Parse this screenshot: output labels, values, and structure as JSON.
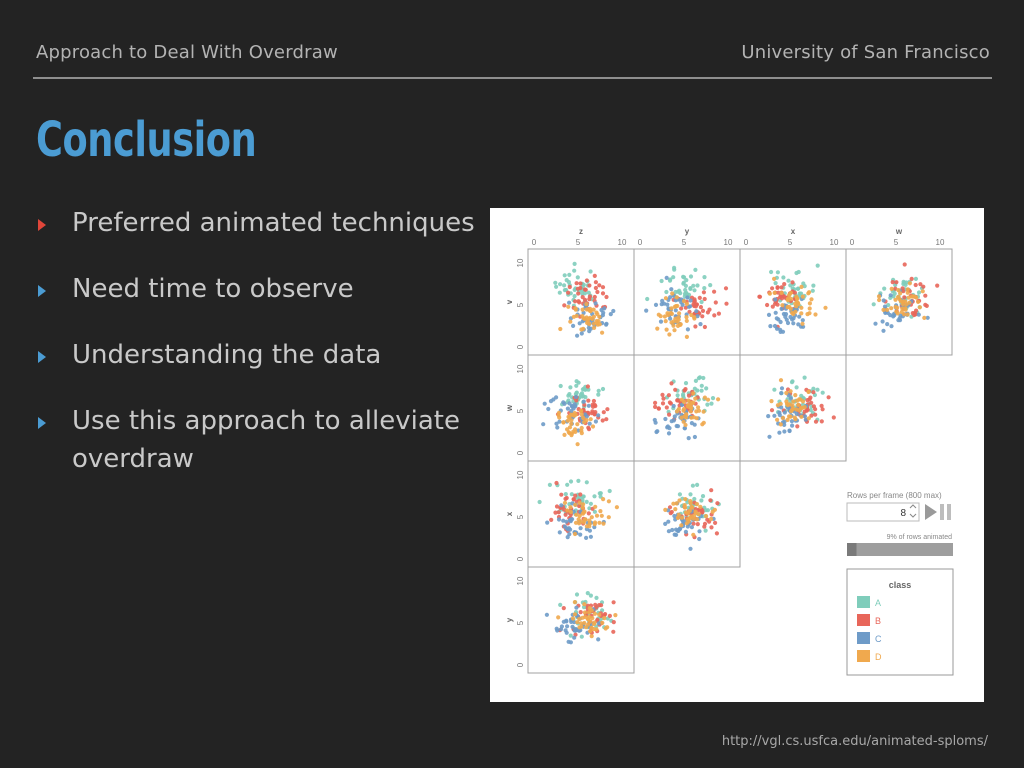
{
  "header": {
    "left": "Approach to Deal With Overdraw",
    "right": "University of San Francisco"
  },
  "title": "Conclusion",
  "bullets": [
    {
      "text": "Preferred animated techniques",
      "marker_color": "#e0463a"
    },
    {
      "text": "Need time to observe",
      "marker_color": "#4b9cd3"
    },
    {
      "text": "Understanding the data",
      "marker_color": "#4b9cd3"
    },
    {
      "text": "Use this approach to alleviate overdraw",
      "marker_color": "#4b9cd3"
    }
  ],
  "figure": {
    "column_labels": [
      "z",
      "y",
      "x",
      "w"
    ],
    "row_labels": [
      "v",
      "w",
      "x",
      "y"
    ],
    "tick_labels": [
      "0",
      "5",
      "10"
    ],
    "controls": {
      "rows_label": "Rows per frame (800 max)",
      "rows_value": "8",
      "progress_label": "9% of rows animated",
      "progress_fraction": 0.09
    },
    "legend": {
      "title": "class",
      "items": [
        {
          "label": "A",
          "color": "#7fcdbb"
        },
        {
          "label": "B",
          "color": "#e8665a"
        },
        {
          "label": "C",
          "color": "#6e9bc8"
        },
        {
          "label": "D",
          "color": "#f0a94e"
        }
      ]
    }
  },
  "source_url": "http://vgl.cs.usfca.edu/animated-sploms/"
}
